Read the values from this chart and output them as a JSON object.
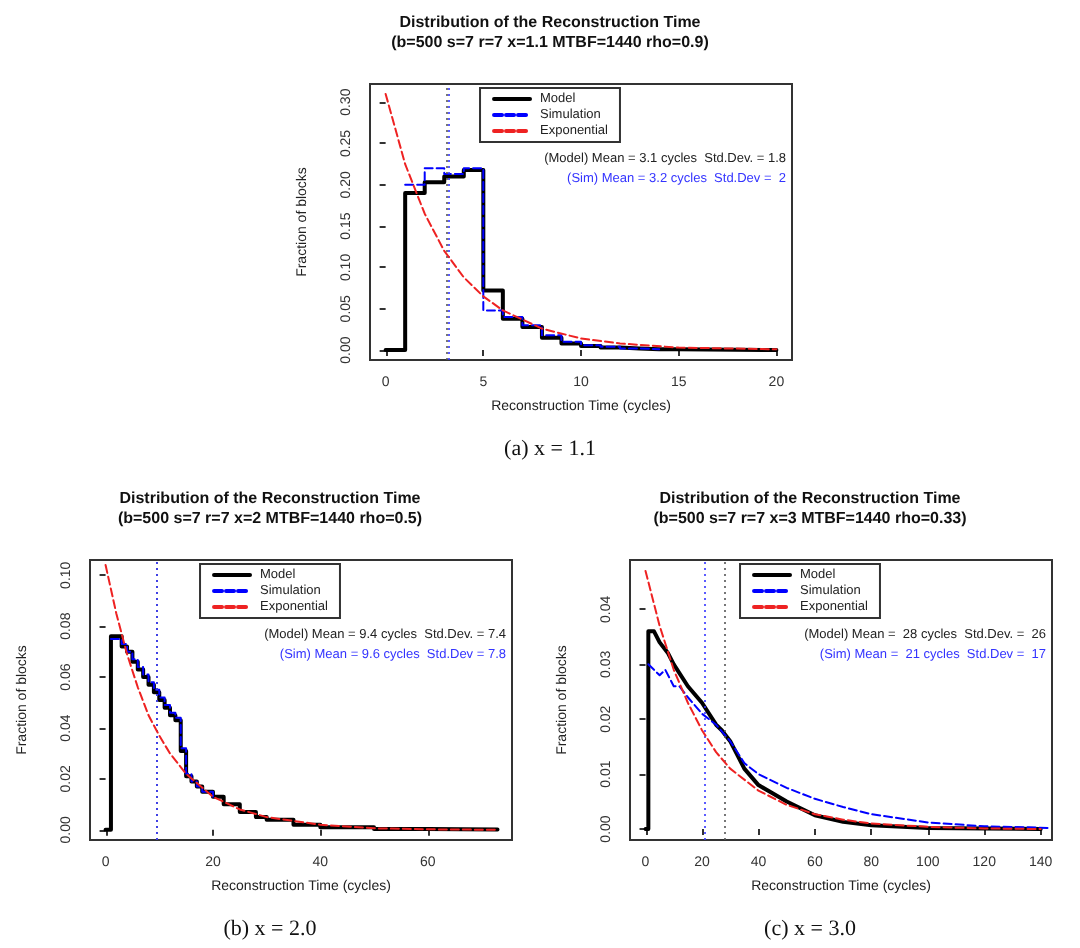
{
  "chart_data": [
    {
      "type": "line",
      "title": "Distribution of the Reconstruction Time",
      "subtitle": "(b=500 s=7 r=7 x=1.1 MTBF=1440 rho=0.9)",
      "xlabel": "Reconstruction Time (cycles)",
      "ylabel": "Fraction of blocks",
      "legend": "top",
      "grid": false,
      "marker": "none",
      "annotations": [
        "(Model) Mean = 3.1 cycles  Std.Dev. = 1.8",
        "(Sim) Mean = 3.2 cycles  Std.Dev =  2",
        "(a) x = 1.1"
      ],
      "xlim": [
        -0.8,
        20.8
      ],
      "xticks": [
        0,
        5,
        10,
        15,
        20
      ],
      "ylim": [
        -0.012,
        0.322
      ],
      "yticks": [
        {
          "value": 0,
          "label": "0.00"
        },
        {
          "value": 0.05,
          "label": "0.05"
        },
        {
          "value": 0.1,
          "label": "0.10"
        },
        {
          "value": 0.15,
          "label": "0.15"
        },
        {
          "value": 0.2,
          "label": "0.20"
        },
        {
          "value": 0.25,
          "label": "0.25"
        },
        {
          "value": 0.3,
          "label": "0.30"
        }
      ],
      "ref_lines": [
        {
          "axis": "x",
          "value": 3.1,
          "color": "#555555",
          "line_style": "dotted"
        },
        {
          "axis": "x",
          "value": 3.2,
          "color": "#3333ff",
          "line_style": "dotted"
        }
      ],
      "series": [
        {
          "name": "Model",
          "type": "step",
          "color": "#000000",
          "line_style": "solid",
          "x": [
            0,
            1,
            2,
            3,
            4,
            5,
            6,
            7,
            8,
            9,
            10,
            11,
            12,
            13,
            14,
            15,
            20
          ],
          "values": [
            0,
            0.19,
            0.203,
            0.21,
            0.218,
            0.072,
            0.038,
            0.028,
            0.015,
            0.008,
            0.005,
            0.003,
            0.002,
            0.001,
            0.001,
            0,
            0
          ]
        },
        {
          "name": "Simulation",
          "type": "step",
          "color": "#0000ff",
          "line_style": "dashed",
          "x": [
            1,
            2,
            3,
            4,
            5,
            6,
            7,
            8,
            9,
            10,
            11,
            12,
            13,
            14
          ],
          "values": [
            0.2,
            0.22,
            0.213,
            0.22,
            0.048,
            0.04,
            0.03,
            0.018,
            0.01,
            0.006,
            0.004,
            0.002,
            0.001,
            0.001
          ]
        },
        {
          "name": "Exponential",
          "type": "line",
          "color": "#ee2222",
          "line_style": "dashed",
          "x": [
            0,
            1,
            2,
            3,
            4,
            5,
            6,
            8,
            10,
            12,
            15,
            20
          ],
          "values": [
            0.31,
            0.225,
            0.165,
            0.12,
            0.088,
            0.065,
            0.048,
            0.026,
            0.014,
            0.008,
            0.003,
            0.001
          ]
        }
      ]
    },
    {
      "type": "line",
      "title": "Distribution of the Reconstruction Time",
      "subtitle": "(b=500 s=7 r=7 x=2 MTBF=1440 rho=0.5)",
      "xlabel": "Reconstruction Time (cycles)",
      "ylabel": "Fraction of blocks",
      "legend": "top",
      "grid": false,
      "marker": "none",
      "annotations": [
        "(Model) Mean = 9.4 cycles  Std.Dev. = 7.4",
        "(Sim) Mean = 9.6 cycles  Std.Dev = 7.8",
        "(b) x = 2.0"
      ],
      "xlim": [
        -2.9,
        75.7
      ],
      "xticks": [
        0,
        20,
        40,
        60
      ],
      "ylim": [
        -0.004,
        0.106
      ],
      "yticks": [
        {
          "value": 0,
          "label": "0.00"
        },
        {
          "value": 0.02,
          "label": "0.02"
        },
        {
          "value": 0.04,
          "label": "0.04"
        },
        {
          "value": 0.06,
          "label": "0.06"
        },
        {
          "value": 0.08,
          "label": "0.08"
        },
        {
          "value": 0.1,
          "label": "0.10"
        }
      ],
      "ref_lines": [
        {
          "axis": "x",
          "value": 9.4,
          "color": "#555555",
          "line_style": "dotted"
        },
        {
          "axis": "x",
          "value": 9.6,
          "color": "#3333ff",
          "line_style": "dotted"
        }
      ],
      "series": [
        {
          "name": "Model",
          "type": "step",
          "color": "#000000",
          "line_style": "solid",
          "x": [
            0,
            1,
            2,
            3,
            4,
            5,
            6,
            7,
            8,
            9,
            10,
            11,
            12,
            13,
            14,
            15,
            16,
            17,
            18,
            20,
            22,
            25,
            28,
            30,
            35,
            40,
            50,
            60,
            73
          ],
          "values": [
            0,
            0.076,
            0.076,
            0.072,
            0.07,
            0.066,
            0.063,
            0.06,
            0.057,
            0.054,
            0.051,
            0.048,
            0.045,
            0.043,
            0.031,
            0.021,
            0.019,
            0.017,
            0.015,
            0.013,
            0.01,
            0.007,
            0.005,
            0.004,
            0.002,
            0.001,
            0.0003,
            0.0001,
            0
          ]
        },
        {
          "name": "Simulation",
          "type": "step",
          "color": "#0000ff",
          "line_style": "dashed",
          "x": [
            1,
            2,
            3,
            4,
            5,
            6,
            7,
            8,
            9,
            10,
            11,
            12,
            13,
            14,
            15,
            16,
            17,
            18,
            20
          ],
          "values": [
            0.075,
            0.075,
            0.073,
            0.07,
            0.067,
            0.064,
            0.061,
            0.058,
            0.055,
            0.052,
            0.049,
            0.046,
            0.044,
            0.032,
            0.022,
            0.019,
            0.017,
            0.015,
            0.013
          ]
        },
        {
          "name": "Exponential",
          "type": "line",
          "color": "#ee2222",
          "line_style": "dashed",
          "x": [
            0,
            2,
            4,
            6,
            8,
            10,
            12,
            15,
            20,
            25,
            30,
            40,
            50,
            60,
            73
          ],
          "values": [
            0.104,
            0.085,
            0.069,
            0.056,
            0.045,
            0.037,
            0.03,
            0.022,
            0.013,
            0.008,
            0.005,
            0.002,
            0.0006,
            0.0002,
            0
          ]
        }
      ]
    },
    {
      "type": "line",
      "title": "Distribution of the Reconstruction Time",
      "subtitle": "(b=500 s=7 r=7 x=3 MTBF=1440 rho=0.33)",
      "xlabel": "Reconstruction Time (cycles)",
      "ylabel": "Fraction of blocks",
      "legend": "top",
      "grid": false,
      "marker": "none",
      "annotations": [
        "(Model) Mean =  28 cycles  Std.Dev. =  26",
        "(Sim) Mean =  21 cycles  Std.Dev =  17",
        "(c) x = 3.0"
      ],
      "xlim": [
        -5.5,
        144
      ],
      "xticks": [
        0,
        20,
        40,
        60,
        80,
        100,
        120,
        140
      ],
      "ylim": [
        -0.002,
        0.049
      ],
      "yticks": [
        {
          "value": 0,
          "label": "0.00"
        },
        {
          "value": 0.01,
          "label": "0.01"
        },
        {
          "value": 0.02,
          "label": "0.02"
        },
        {
          "value": 0.03,
          "label": "0.03"
        },
        {
          "value": 0.04,
          "label": "0.04"
        }
      ],
      "ref_lines": [
        {
          "axis": "x",
          "value": 21,
          "color": "#3333ff",
          "line_style": "dotted"
        },
        {
          "axis": "x",
          "value": 28,
          "color": "#555555",
          "line_style": "dotted"
        }
      ],
      "series": [
        {
          "name": "Model",
          "type": "line",
          "color": "#000000",
          "line_style": "solid",
          "x": [
            0,
            1,
            1,
            3,
            5,
            8,
            10,
            15,
            20,
            25,
            27,
            30,
            33,
            35,
            40,
            45,
            50,
            60,
            70,
            80,
            100,
            120,
            140
          ],
          "values": [
            0,
            0,
            0.036,
            0.036,
            0.034,
            0.032,
            0.03,
            0.026,
            0.023,
            0.019,
            0.018,
            0.016,
            0.013,
            0.011,
            0.008,
            0.0065,
            0.005,
            0.0025,
            0.0013,
            0.0007,
            0.0002,
            0.0001,
            0
          ]
        },
        {
          "name": "Simulation",
          "type": "line",
          "color": "#0000ff",
          "line_style": "dashed",
          "x": [
            1,
            3,
            5,
            7,
            10,
            12,
            15,
            20,
            25,
            30,
            35,
            40,
            50,
            60,
            70,
            80,
            100,
            120,
            143
          ],
          "values": [
            0.03,
            0.029,
            0.028,
            0.029,
            0.026,
            0.026,
            0.024,
            0.021,
            0.019,
            0.016,
            0.012,
            0.01,
            0.0075,
            0.0055,
            0.004,
            0.0027,
            0.0012,
            0.0005,
            0.0002
          ]
        },
        {
          "name": "Exponential",
          "type": "line",
          "color": "#ee2222",
          "line_style": "dashed",
          "x": [
            0,
            5,
            10,
            15,
            20,
            25,
            30,
            40,
            50,
            60,
            70,
            80,
            100,
            120,
            140
          ],
          "values": [
            0.047,
            0.037,
            0.029,
            0.023,
            0.018,
            0.014,
            0.011,
            0.007,
            0.0044,
            0.0027,
            0.0017,
            0.001,
            0.0004,
            0.0001,
            0
          ]
        }
      ]
    }
  ]
}
